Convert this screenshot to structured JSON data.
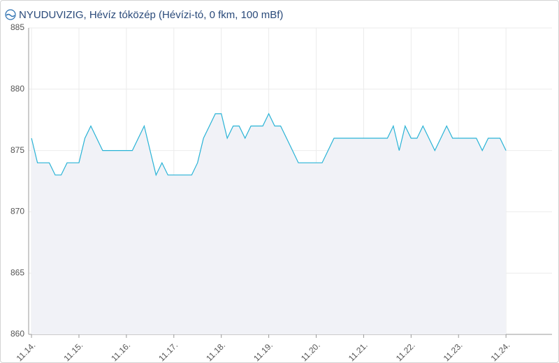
{
  "chart_data": {
    "type": "line",
    "title": "NYUDUVIZIG, Hévíz tóközép (Hévízi-tó, 0 fkm, 100 mBf)",
    "x": [
      14,
      14.125,
      14.25,
      14.375,
      14.5,
      14.625,
      14.75,
      14.875,
      15,
      15.125,
      15.25,
      15.375,
      15.5,
      15.625,
      15.75,
      15.875,
      16,
      16.125,
      16.25,
      16.375,
      16.5,
      16.625,
      16.75,
      16.875,
      17,
      17.125,
      17.25,
      17.375,
      17.5,
      17.625,
      17.75,
      17.875,
      18,
      18.125,
      18.25,
      18.375,
      18.5,
      18.625,
      18.75,
      18.875,
      19,
      19.125,
      19.25,
      19.375,
      19.5,
      19.625,
      19.75,
      19.875,
      20,
      20.125,
      20.25,
      20.375,
      20.5,
      20.625,
      20.75,
      20.875,
      21,
      21.125,
      21.25,
      21.375,
      21.5,
      21.625,
      21.75,
      21.875,
      22,
      22.125,
      22.25,
      22.375,
      22.5,
      22.625,
      22.75,
      22.875,
      23,
      23.125,
      23.25,
      23.375,
      23.5,
      23.625,
      23.75,
      23.875,
      24
    ],
    "series": [
      {
        "color": "#29b3d6",
        "values": [
          876,
          874,
          874,
          874,
          873,
          873,
          874,
          874,
          874,
          876,
          877,
          876,
          875,
          875,
          875,
          875,
          875,
          875,
          876,
          877,
          875,
          873,
          874,
          873,
          873,
          873,
          873,
          873,
          874,
          876,
          877,
          878,
          878,
          876,
          877,
          877,
          876,
          877,
          877,
          877,
          878,
          877,
          877,
          876,
          875,
          874,
          874,
          874,
          874,
          874,
          875,
          876,
          876,
          876,
          876,
          876,
          876,
          876,
          876,
          876,
          876,
          877,
          875,
          877,
          876,
          876,
          877,
          876,
          875,
          876,
          877,
          876,
          876,
          876,
          876,
          876,
          875,
          876,
          876,
          876,
          875
        ]
      }
    ],
    "area_color": "#f1f2f7",
    "xlim": [
      13.94,
      24.97
    ],
    "xticks": [
      {
        "value": 14,
        "label": "11.14."
      },
      {
        "value": 15,
        "label": "11.15."
      },
      {
        "value": 16,
        "label": "11.16."
      },
      {
        "value": 17,
        "label": "11.17."
      },
      {
        "value": 18,
        "label": "11.18."
      },
      {
        "value": 19,
        "label": "11.19."
      },
      {
        "value": 20,
        "label": "11.20."
      },
      {
        "value": 21,
        "label": "11.21."
      },
      {
        "value": 22,
        "label": "11.22."
      },
      {
        "value": 23,
        "label": "11.23."
      },
      {
        "value": 24,
        "label": "11.24."
      }
    ],
    "ylim": [
      860,
      885
    ],
    "yticks": [
      860,
      865,
      870,
      875,
      880,
      885
    ],
    "grid": true
  }
}
